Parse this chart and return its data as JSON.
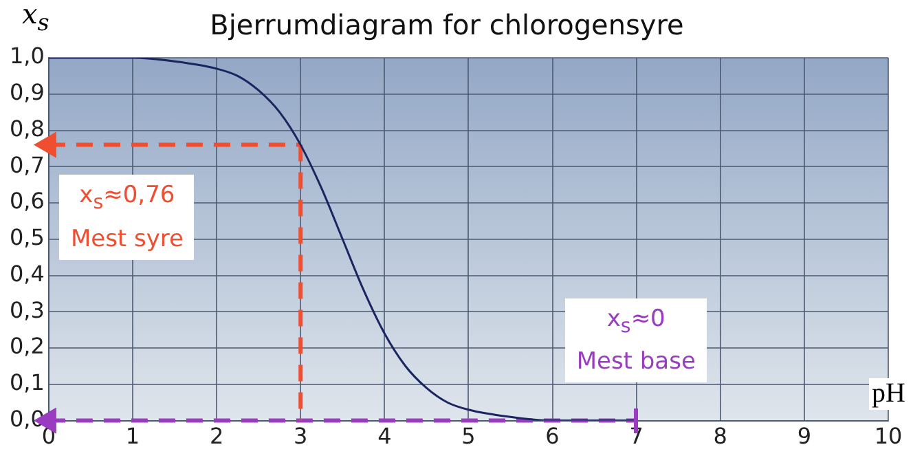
{
  "chart_data": {
    "type": "line",
    "title": "Bjerrumdiagram for chlorogensyre",
    "xlabel": "pH",
    "ylabel": "x$_{s}$",
    "series": [
      {
        "color": "#1b2560",
        "x": [
          0,
          0.5,
          1,
          1.5,
          2,
          2.25,
          2.5,
          2.75,
          3,
          3.25,
          3.5,
          3.75,
          4,
          4.25,
          4.5,
          4.75,
          5,
          5.5,
          6,
          6.5,
          7
        ],
        "values": [
          1.0,
          1.0,
          1.0,
          0.99,
          0.97,
          0.95,
          0.91,
          0.85,
          0.76,
          0.64,
          0.5,
          0.36,
          0.24,
          0.15,
          0.09,
          0.05,
          0.03,
          0.01,
          0.0,
          0.0,
          0.0
        ]
      },
      {
        "type": "line",
        "color": "#f04e30",
        "line_style": "dashed",
        "marker": "triangle",
        "x": [
          0,
          3
        ],
        "values": [
          0.76,
          0.76
        ]
      },
      {
        "type": "line",
        "color": "#f04e30",
        "line_style": "dashed",
        "x": [
          3,
          3
        ],
        "values": [
          0.76,
          0
        ]
      },
      {
        "type": "line",
        "color": "#9a3cc0",
        "line_style": "dashed",
        "marker": "triangle",
        "x": [
          0,
          7
        ],
        "values": [
          0,
          0
        ]
      }
    ],
    "xlim": [
      0,
      10
    ],
    "xticks": [
      0,
      1,
      2,
      3,
      4,
      5,
      6,
      7,
      8,
      9,
      10
    ],
    "ylim": [
      0,
      1
    ],
    "yticks": [
      {
        "value": 0,
        "label": "0,0"
      },
      {
        "value": 0.1,
        "label": "0,1"
      },
      {
        "value": 0.2,
        "label": "0,2"
      },
      {
        "value": 0.3,
        "label": "0,3"
      },
      {
        "value": 0.4,
        "label": "0,4"
      },
      {
        "value": 0.5,
        "label": "0,5"
      },
      {
        "value": 0.6,
        "label": "0,6"
      },
      {
        "value": 0.7,
        "label": "0,7"
      },
      {
        "value": 0.8,
        "label": "0,8"
      },
      {
        "value": 0.9,
        "label": "0,9"
      },
      {
        "value": 1,
        "label": "1,0"
      }
    ],
    "annotations": [
      "x$_{s}$≈0,76",
      "Mest syre",
      "x$_{s}$≈0",
      "Mest base"
    ],
    "grid": true,
    "legend": false,
    "marker": "none"
  }
}
